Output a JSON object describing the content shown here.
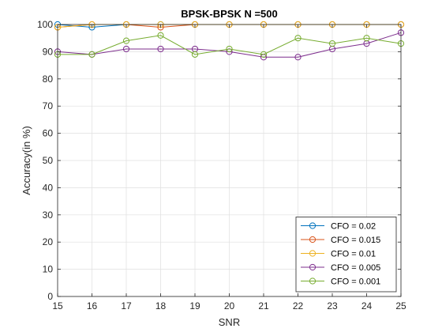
{
  "chart_data": {
    "type": "line",
    "title": "BPSK-BPSK N =500",
    "xlabel": "SNR",
    "ylabel": "Accuracy(in %)",
    "x": [
      15,
      16,
      17,
      18,
      19,
      20,
      21,
      22,
      23,
      24,
      25
    ],
    "xlim": [
      15,
      25
    ],
    "ylim": [
      0,
      100
    ],
    "xticks": [
      15,
      16,
      17,
      18,
      19,
      20,
      21,
      22,
      23,
      24,
      25
    ],
    "yticks": [
      0,
      10,
      20,
      30,
      40,
      50,
      60,
      70,
      80,
      90,
      100
    ],
    "grid": true,
    "legend_position": "bottom-right",
    "marker": "circle",
    "series": [
      {
        "name": "CFO = 0.02",
        "color": "#0072BD",
        "values": [
          100,
          99,
          100,
          100,
          100,
          100,
          100,
          100,
          100,
          100,
          100
        ]
      },
      {
        "name": "CFO = 0.015",
        "color": "#D95319",
        "values": [
          99,
          100,
          100,
          99,
          100,
          100,
          100,
          100,
          100,
          100,
          100
        ]
      },
      {
        "name": "CFO = 0.01",
        "color": "#EDB120",
        "values": [
          99,
          100,
          100,
          100,
          100,
          100,
          100,
          100,
          100,
          100,
          100
        ]
      },
      {
        "name": "CFO = 0.005",
        "color": "#7E2F8E",
        "values": [
          90,
          89,
          91,
          91,
          91,
          90,
          88,
          88,
          91,
          93,
          97
        ]
      },
      {
        "name": "CFO = 0.001",
        "color": "#77AC30",
        "values": [
          89,
          89,
          94,
          96,
          89,
          91,
          89,
          95,
          93,
          95,
          93
        ]
      }
    ]
  }
}
